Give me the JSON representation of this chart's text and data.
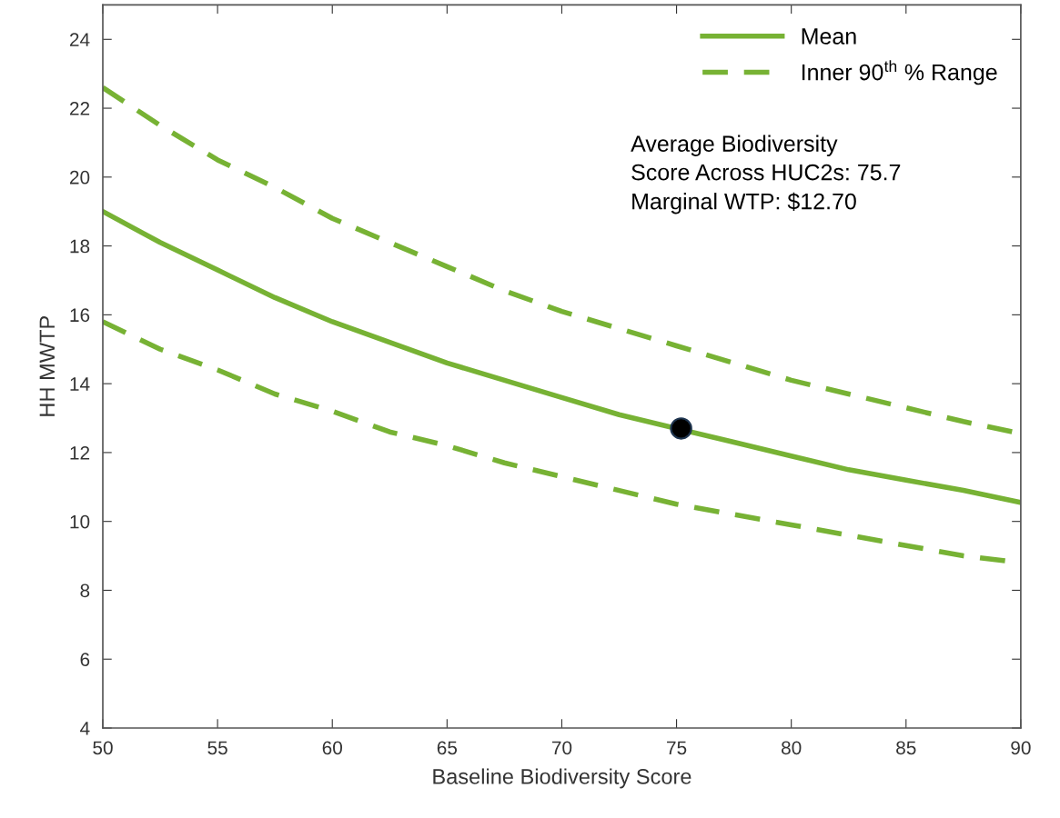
{
  "chart_data": {
    "type": "line",
    "xlabel": "Baseline Biodiversity Score",
    "ylabel": "HH MWTP",
    "x": [
      50,
      52.5,
      55,
      57.5,
      60,
      62.5,
      65,
      67.5,
      70,
      72.5,
      75,
      77.5,
      80,
      82.5,
      85,
      87.5,
      90
    ],
    "series": [
      {
        "name": "Mean",
        "color": "#77b234",
        "line_style": "solid",
        "x": [
          50,
          52.5,
          55,
          57.5,
          60,
          62.5,
          65,
          67.5,
          70,
          72.5,
          77.5,
          80,
          82.5,
          85,
          87.5,
          90
        ],
        "values": [
          19.0,
          18.1,
          17.3,
          16.5,
          15.8,
          15.2,
          14.6,
          14.1,
          13.6,
          13.1,
          12.3,
          11.9,
          11.5,
          11.2,
          10.9,
          10.55
        ]
      },
      {
        "name": "Inner 90$^{th}$ % Range",
        "color": "#77b234",
        "line_style": "dashed",
        "values": [
          22.6,
          21.5,
          20.5,
          19.7,
          18.8,
          18.1,
          17.4,
          16.7,
          16.1,
          15.6,
          15.1,
          14.6,
          14.1,
          13.7,
          13.3,
          12.9,
          12.55
        ]
      },
      {
        "color": "#77b234",
        "line_style": "dashed",
        "values": [
          15.8,
          15.0,
          14.4,
          13.7,
          13.2,
          12.6,
          12.2,
          11.7,
          11.3,
          10.9,
          10.5,
          10.2,
          9.9,
          9.6,
          9.3,
          9.0,
          8.8
        ]
      },
      {
        "type": "scatter",
        "color": "#000000",
        "marker": "circle",
        "x": [
          75.2
        ],
        "values": [
          12.7
        ]
      }
    ],
    "xlim": [
      50,
      90
    ],
    "xticks": [
      50,
      55,
      60,
      65,
      70,
      75,
      80,
      85,
      90
    ],
    "ylim": [
      4,
      25
    ],
    "yticks": [
      4,
      6,
      8,
      10,
      12,
      14,
      16,
      18,
      20,
      22,
      24
    ],
    "grid": false,
    "legend": "top right",
    "annotations": [
      "Average Biodiversity\nScore Across HUC2s: 75.7\nMarginal WTP: $12.70"
    ]
  }
}
